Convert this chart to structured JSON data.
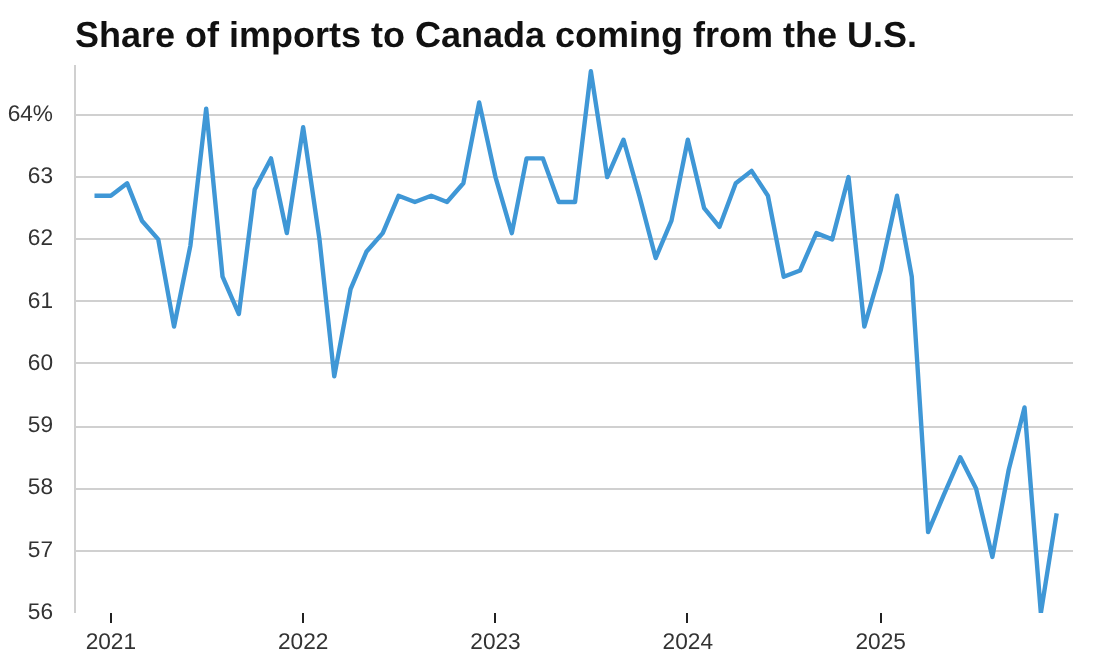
{
  "chart_data": {
    "type": "line",
    "title": "Share of imports to Canada coming from the U.S.",
    "x": [
      "2020-12",
      "2021-01",
      "2021-02",
      "2021-03",
      "2021-04",
      "2021-05",
      "2021-06",
      "2021-07",
      "2021-08",
      "2021-09",
      "2021-10",
      "2021-11",
      "2021-12",
      "2022-01",
      "2022-02",
      "2022-03",
      "2022-04",
      "2022-05",
      "2022-06",
      "2022-07",
      "2022-08",
      "2022-09",
      "2022-10",
      "2022-11",
      "2022-12",
      "2023-01",
      "2023-02",
      "2023-03",
      "2023-04",
      "2023-05",
      "2023-06",
      "2023-07",
      "2023-08",
      "2023-09",
      "2023-10",
      "2023-11",
      "2023-12",
      "2024-01",
      "2024-02",
      "2024-03",
      "2024-04",
      "2024-05",
      "2024-06",
      "2024-07",
      "2024-08",
      "2024-09",
      "2024-10",
      "2024-11",
      "2024-12",
      "2025-01",
      "2025-02",
      "2025-03",
      "2025-04",
      "2025-05",
      "2025-06",
      "2025-07",
      "2025-08",
      "2025-09",
      "2025-10",
      "2025-11",
      "2025-12"
    ],
    "series": [
      {
        "color": "#3f97d6",
        "values": [
          62.7,
          62.7,
          62.9,
          62.3,
          62.0,
          60.6,
          61.9,
          64.1,
          61.4,
          60.8,
          62.8,
          63.3,
          62.1,
          63.8,
          62.0,
          59.8,
          61.2,
          61.8,
          62.1,
          62.7,
          62.6,
          62.7,
          62.6,
          62.9,
          64.2,
          63.0,
          62.1,
          63.3,
          63.3,
          62.6,
          62.6,
          64.7,
          63.0,
          63.6,
          62.7,
          61.7,
          62.3,
          63.6,
          62.5,
          62.2,
          62.9,
          63.1,
          62.7,
          61.4,
          61.5,
          62.1,
          62.0,
          63.0,
          60.6,
          61.5,
          62.7,
          61.4,
          57.3,
          57.9,
          58.5,
          58.0,
          56.9,
          58.3,
          59.3,
          56.0,
          57.6
        ]
      }
    ],
    "xlim": [
      "2020-10-25",
      "2026-01-01"
    ],
    "xticks": [
      "2021",
      "2022",
      "2023",
      "2024",
      "2025"
    ],
    "ylim": [
      56,
      64.8
    ],
    "yticks": [
      56,
      57,
      58,
      59,
      60,
      61,
      62,
      63,
      {
        "value": 64,
        "label": "64%"
      }
    ],
    "grid": "y",
    "marker": "none",
    "line_style": "solid"
  }
}
